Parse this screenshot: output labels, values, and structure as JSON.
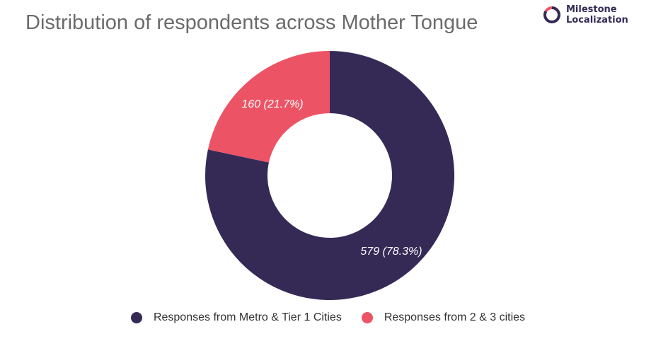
{
  "brand": {
    "line1": "Milestone",
    "line2": "Localization",
    "logo_icon": "ring-logo-icon",
    "colors": {
      "dark": "#352a56",
      "accent": "#ec5466"
    }
  },
  "chart_data": {
    "type": "pie",
    "donut": true,
    "title": "Distribution of respondents across Mother Tongue",
    "series": [
      {
        "name": "Responses from Metro & Tier 1 Cities",
        "value": 579,
        "percent": 78.3,
        "label": "579 (78.3%)",
        "color": "#352a56"
      },
      {
        "name": "Responses from 2 & 3 cities",
        "value": 160,
        "percent": 21.7,
        "label": "160 (21.7%)",
        "color": "#ec5466"
      }
    ],
    "legend_position": "bottom"
  }
}
